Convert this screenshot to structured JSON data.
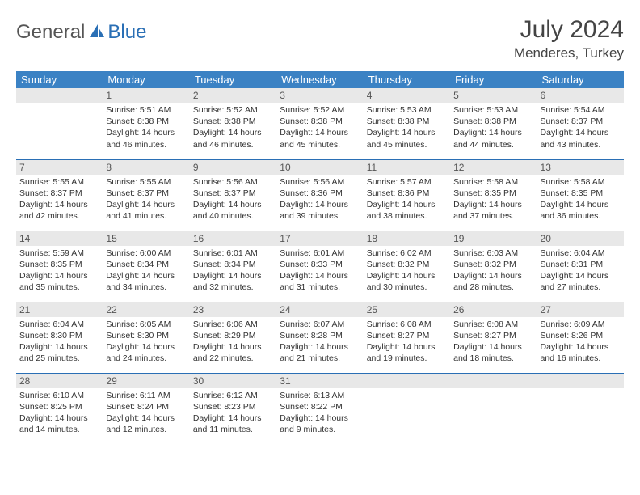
{
  "brand": {
    "part1": "General",
    "part2": "Blue"
  },
  "title": "July 2024",
  "location": "Menderes, Turkey",
  "colors": {
    "header_bg": "#3b82c4",
    "divider": "#2a6fb5",
    "daynum_bg": "#e8e8e8",
    "text": "#333333",
    "logo_gray": "#555555",
    "logo_blue": "#2a6fb5"
  },
  "day_headers": [
    "Sunday",
    "Monday",
    "Tuesday",
    "Wednesday",
    "Thursday",
    "Friday",
    "Saturday"
  ],
  "weeks": [
    [
      null,
      {
        "n": "1",
        "sr": "Sunrise: 5:51 AM",
        "ss": "Sunset: 8:38 PM",
        "d1": "Daylight: 14 hours",
        "d2": "and 46 minutes."
      },
      {
        "n": "2",
        "sr": "Sunrise: 5:52 AM",
        "ss": "Sunset: 8:38 PM",
        "d1": "Daylight: 14 hours",
        "d2": "and 46 minutes."
      },
      {
        "n": "3",
        "sr": "Sunrise: 5:52 AM",
        "ss": "Sunset: 8:38 PM",
        "d1": "Daylight: 14 hours",
        "d2": "and 45 minutes."
      },
      {
        "n": "4",
        "sr": "Sunrise: 5:53 AM",
        "ss": "Sunset: 8:38 PM",
        "d1": "Daylight: 14 hours",
        "d2": "and 45 minutes."
      },
      {
        "n": "5",
        "sr": "Sunrise: 5:53 AM",
        "ss": "Sunset: 8:38 PM",
        "d1": "Daylight: 14 hours",
        "d2": "and 44 minutes."
      },
      {
        "n": "6",
        "sr": "Sunrise: 5:54 AM",
        "ss": "Sunset: 8:37 PM",
        "d1": "Daylight: 14 hours",
        "d2": "and 43 minutes."
      }
    ],
    [
      {
        "n": "7",
        "sr": "Sunrise: 5:55 AM",
        "ss": "Sunset: 8:37 PM",
        "d1": "Daylight: 14 hours",
        "d2": "and 42 minutes."
      },
      {
        "n": "8",
        "sr": "Sunrise: 5:55 AM",
        "ss": "Sunset: 8:37 PM",
        "d1": "Daylight: 14 hours",
        "d2": "and 41 minutes."
      },
      {
        "n": "9",
        "sr": "Sunrise: 5:56 AM",
        "ss": "Sunset: 8:37 PM",
        "d1": "Daylight: 14 hours",
        "d2": "and 40 minutes."
      },
      {
        "n": "10",
        "sr": "Sunrise: 5:56 AM",
        "ss": "Sunset: 8:36 PM",
        "d1": "Daylight: 14 hours",
        "d2": "and 39 minutes."
      },
      {
        "n": "11",
        "sr": "Sunrise: 5:57 AM",
        "ss": "Sunset: 8:36 PM",
        "d1": "Daylight: 14 hours",
        "d2": "and 38 minutes."
      },
      {
        "n": "12",
        "sr": "Sunrise: 5:58 AM",
        "ss": "Sunset: 8:35 PM",
        "d1": "Daylight: 14 hours",
        "d2": "and 37 minutes."
      },
      {
        "n": "13",
        "sr": "Sunrise: 5:58 AM",
        "ss": "Sunset: 8:35 PM",
        "d1": "Daylight: 14 hours",
        "d2": "and 36 minutes."
      }
    ],
    [
      {
        "n": "14",
        "sr": "Sunrise: 5:59 AM",
        "ss": "Sunset: 8:35 PM",
        "d1": "Daylight: 14 hours",
        "d2": "and 35 minutes."
      },
      {
        "n": "15",
        "sr": "Sunrise: 6:00 AM",
        "ss": "Sunset: 8:34 PM",
        "d1": "Daylight: 14 hours",
        "d2": "and 34 minutes."
      },
      {
        "n": "16",
        "sr": "Sunrise: 6:01 AM",
        "ss": "Sunset: 8:34 PM",
        "d1": "Daylight: 14 hours",
        "d2": "and 32 minutes."
      },
      {
        "n": "17",
        "sr": "Sunrise: 6:01 AM",
        "ss": "Sunset: 8:33 PM",
        "d1": "Daylight: 14 hours",
        "d2": "and 31 minutes."
      },
      {
        "n": "18",
        "sr": "Sunrise: 6:02 AM",
        "ss": "Sunset: 8:32 PM",
        "d1": "Daylight: 14 hours",
        "d2": "and 30 minutes."
      },
      {
        "n": "19",
        "sr": "Sunrise: 6:03 AM",
        "ss": "Sunset: 8:32 PM",
        "d1": "Daylight: 14 hours",
        "d2": "and 28 minutes."
      },
      {
        "n": "20",
        "sr": "Sunrise: 6:04 AM",
        "ss": "Sunset: 8:31 PM",
        "d1": "Daylight: 14 hours",
        "d2": "and 27 minutes."
      }
    ],
    [
      {
        "n": "21",
        "sr": "Sunrise: 6:04 AM",
        "ss": "Sunset: 8:30 PM",
        "d1": "Daylight: 14 hours",
        "d2": "and 25 minutes."
      },
      {
        "n": "22",
        "sr": "Sunrise: 6:05 AM",
        "ss": "Sunset: 8:30 PM",
        "d1": "Daylight: 14 hours",
        "d2": "and 24 minutes."
      },
      {
        "n": "23",
        "sr": "Sunrise: 6:06 AM",
        "ss": "Sunset: 8:29 PM",
        "d1": "Daylight: 14 hours",
        "d2": "and 22 minutes."
      },
      {
        "n": "24",
        "sr": "Sunrise: 6:07 AM",
        "ss": "Sunset: 8:28 PM",
        "d1": "Daylight: 14 hours",
        "d2": "and 21 minutes."
      },
      {
        "n": "25",
        "sr": "Sunrise: 6:08 AM",
        "ss": "Sunset: 8:27 PM",
        "d1": "Daylight: 14 hours",
        "d2": "and 19 minutes."
      },
      {
        "n": "26",
        "sr": "Sunrise: 6:08 AM",
        "ss": "Sunset: 8:27 PM",
        "d1": "Daylight: 14 hours",
        "d2": "and 18 minutes."
      },
      {
        "n": "27",
        "sr": "Sunrise: 6:09 AM",
        "ss": "Sunset: 8:26 PM",
        "d1": "Daylight: 14 hours",
        "d2": "and 16 minutes."
      }
    ],
    [
      {
        "n": "28",
        "sr": "Sunrise: 6:10 AM",
        "ss": "Sunset: 8:25 PM",
        "d1": "Daylight: 14 hours",
        "d2": "and 14 minutes."
      },
      {
        "n": "29",
        "sr": "Sunrise: 6:11 AM",
        "ss": "Sunset: 8:24 PM",
        "d1": "Daylight: 14 hours",
        "d2": "and 12 minutes."
      },
      {
        "n": "30",
        "sr": "Sunrise: 6:12 AM",
        "ss": "Sunset: 8:23 PM",
        "d1": "Daylight: 14 hours",
        "d2": "and 11 minutes."
      },
      {
        "n": "31",
        "sr": "Sunrise: 6:13 AM",
        "ss": "Sunset: 8:22 PM",
        "d1": "Daylight: 14 hours",
        "d2": "and 9 minutes."
      },
      null,
      null,
      null
    ]
  ]
}
